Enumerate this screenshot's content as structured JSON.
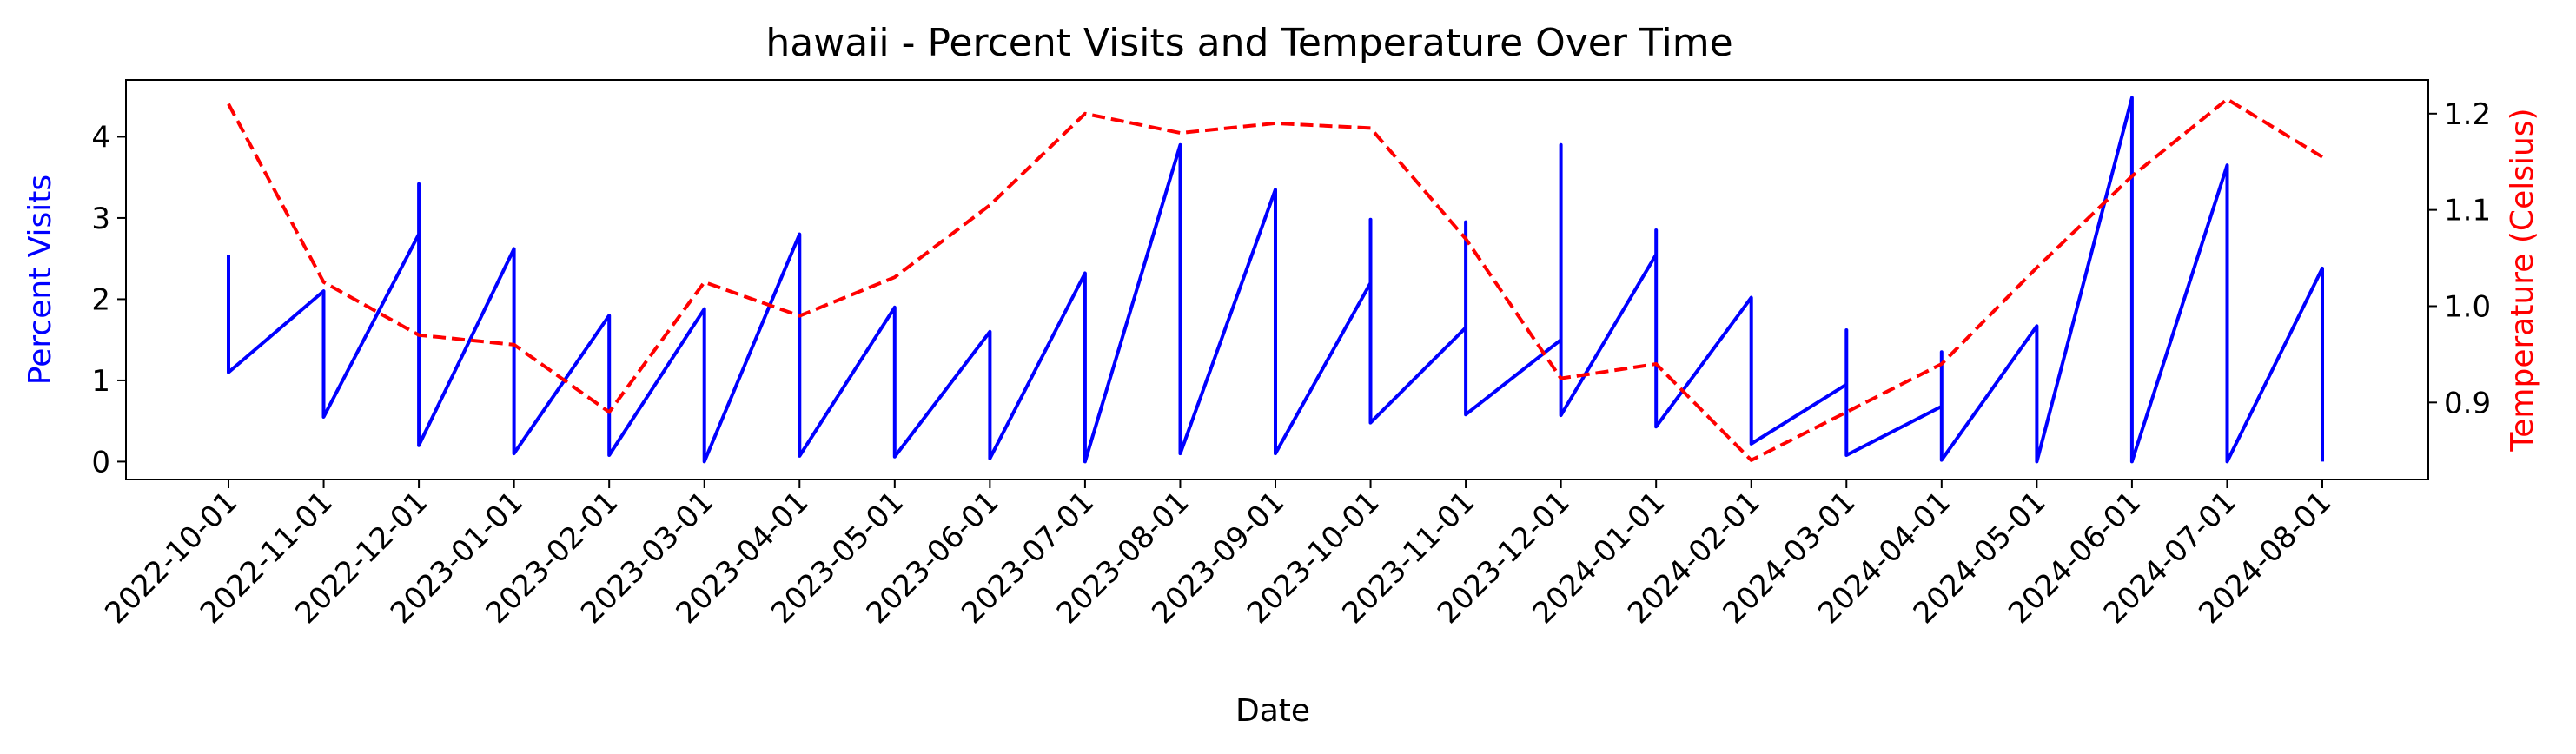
{
  "chart_data": {
    "type": "line",
    "title": "hawaii - Percent Visits and Temperature Over Time",
    "xlabel": "Date",
    "ylabel_left": "Percent Visits",
    "ylabel_right": "Temperature (Celsius)",
    "x_tick_labels": [
      "2022-10-01",
      "2022-11-01",
      "2022-12-01",
      "2023-01-01",
      "2023-02-01",
      "2023-03-01",
      "2023-04-01",
      "2023-05-01",
      "2023-06-01",
      "2023-07-01",
      "2023-08-01",
      "2023-09-01",
      "2023-10-01",
      "2023-11-01",
      "2023-12-01",
      "2024-01-01",
      "2024-02-01",
      "2024-03-01",
      "2024-04-01",
      "2024-05-01",
      "2024-06-01",
      "2024-07-01",
      "2024-08-01"
    ],
    "y_left_ticks": [
      0,
      1,
      2,
      3,
      4
    ],
    "y_right_ticks": [
      0.9,
      1.0,
      1.1,
      1.2
    ],
    "ylim_left": [
      -0.22,
      4.7
    ],
    "ylim_right": [
      0.82,
      1.235
    ],
    "grid": false,
    "colors": {
      "visits": "#0000ff",
      "temperature": "#ff0000",
      "left_label": "#0000ff",
      "right_label": "#ff0000"
    },
    "series": [
      {
        "axis": "left",
        "style": "solid",
        "points": [
          [
            "2022-10-01",
            2.55
          ],
          [
            "2022-10-01",
            1.1
          ],
          [
            "2022-11-01",
            2.1
          ],
          [
            "2022-11-01",
            0.55
          ],
          [
            "2022-12-01",
            2.8
          ],
          [
            "2022-12-01",
            3.42
          ],
          [
            "2022-12-01",
            0.2
          ],
          [
            "2023-01-01",
            2.62
          ],
          [
            "2023-01-01",
            0.1
          ],
          [
            "2023-02-01",
            1.8
          ],
          [
            "2023-02-01",
            0.08
          ],
          [
            "2023-03-01",
            1.88
          ],
          [
            "2023-03-01",
            0.0
          ],
          [
            "2023-04-01",
            2.8
          ],
          [
            "2023-04-01",
            0.07
          ],
          [
            "2023-05-01",
            1.9
          ],
          [
            "2023-05-01",
            0.06
          ],
          [
            "2023-06-01",
            1.6
          ],
          [
            "2023-06-01",
            0.04
          ],
          [
            "2023-07-01",
            2.32
          ],
          [
            "2023-07-01",
            0.0
          ],
          [
            "2023-08-01",
            3.9
          ],
          [
            "2023-08-01",
            0.1
          ],
          [
            "2023-09-01",
            3.35
          ],
          [
            "2023-09-01",
            0.1
          ],
          [
            "2023-10-01",
            2.2
          ],
          [
            "2023-10-01",
            2.98
          ],
          [
            "2023-10-01",
            0.48
          ],
          [
            "2023-11-01",
            1.65
          ],
          [
            "2023-11-01",
            2.95
          ],
          [
            "2023-11-01",
            0.58
          ],
          [
            "2023-12-01",
            1.5
          ],
          [
            "2023-12-01",
            3.9
          ],
          [
            "2023-12-01",
            0.57
          ],
          [
            "2024-01-01",
            2.55
          ],
          [
            "2024-01-01",
            2.85
          ],
          [
            "2024-01-01",
            0.43
          ],
          [
            "2024-02-01",
            2.02
          ],
          [
            "2024-02-01",
            0.22
          ],
          [
            "2024-03-01",
            0.95
          ],
          [
            "2024-03-01",
            1.62
          ],
          [
            "2024-03-01",
            0.08
          ],
          [
            "2024-04-01",
            0.68
          ],
          [
            "2024-04-01",
            1.35
          ],
          [
            "2024-04-01",
            0.02
          ],
          [
            "2024-05-01",
            1.67
          ],
          [
            "2024-05-01",
            0.0
          ],
          [
            "2024-06-01",
            4.48
          ],
          [
            "2024-06-01",
            0.0
          ],
          [
            "2024-07-01",
            3.65
          ],
          [
            "2024-07-01",
            0.0
          ],
          [
            "2024-08-01",
            2.38
          ],
          [
            "2024-08-01",
            0.0
          ]
        ]
      },
      {
        "axis": "right",
        "style": "dashed",
        "points": [
          [
            "2022-10-01",
            1.21
          ],
          [
            "2022-11-01",
            1.025
          ],
          [
            "2022-12-01",
            0.97
          ],
          [
            "2023-01-01",
            0.96
          ],
          [
            "2023-02-01",
            0.89
          ],
          [
            "2023-03-01",
            1.025
          ],
          [
            "2023-04-01",
            0.99
          ],
          [
            "2023-05-01",
            1.03
          ],
          [
            "2023-06-01",
            1.105
          ],
          [
            "2023-07-01",
            1.2
          ],
          [
            "2023-08-01",
            1.18
          ],
          [
            "2023-09-01",
            1.19
          ],
          [
            "2023-10-01",
            1.185
          ],
          [
            "2023-11-01",
            1.07
          ],
          [
            "2023-12-01",
            0.925
          ],
          [
            "2024-01-01",
            0.94
          ],
          [
            "2024-02-01",
            0.84
          ],
          [
            "2024-03-01",
            0.89
          ],
          [
            "2024-04-01",
            0.94
          ],
          [
            "2024-05-01",
            1.04
          ],
          [
            "2024-06-01",
            1.135
          ],
          [
            "2024-07-01",
            1.215
          ],
          [
            "2024-08-01",
            1.155
          ]
        ]
      }
    ]
  }
}
